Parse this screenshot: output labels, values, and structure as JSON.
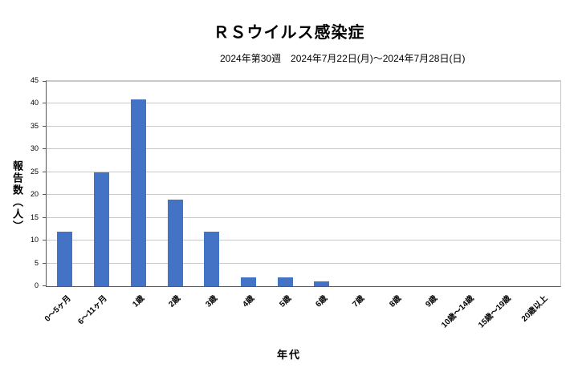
{
  "chart_data": {
    "type": "bar",
    "title": "ＲＳウイルス感染症",
    "subtitle": "2024年第30週　2024年7月22日(月)～2024年7月28日(日)",
    "categories": [
      "0～5ヶ月",
      "6～11ヶ月",
      "1歳",
      "2歳",
      "3歳",
      "4歳",
      "5歳",
      "6歳",
      "7歳",
      "8歳",
      "9歳",
      "10歳～14歳",
      "15歳～19歳",
      "20歳以上"
    ],
    "values": [
      12,
      25,
      41,
      19,
      12,
      2,
      2,
      1,
      0,
      0,
      0,
      0,
      0,
      0
    ],
    "xlabel": "年代",
    "ylabel": "報告数（人）",
    "ylim": [
      0,
      45
    ],
    "ytick_step": 5,
    "bar_color": "#4472C4",
    "gridline_color": "#c9c9c9",
    "axis_color": "#595959",
    "grid": true,
    "legend": "none"
  }
}
